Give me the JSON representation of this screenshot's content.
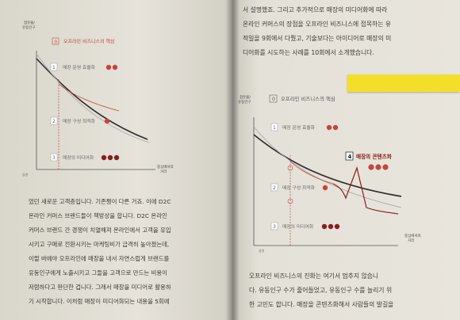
{
  "left_page": {
    "chart": {
      "y_label": [
        "점유율/",
        "유동인구"
      ],
      "x_label": [
        "중심에서의",
        "거리"
      ],
      "header": "오프라인 비즈니스의 핵심",
      "header_num": "0",
      "labels": [
        {
          "num": "1",
          "text": "매장 운영 효율화",
          "marks": [
            "1",
            "2"
          ]
        },
        {
          "num": "2",
          "text": "매장 구성 최적화",
          "marks": [
            "4"
          ]
        },
        {
          "num": "3",
          "text": "매장의 미디어화",
          "marks": [
            "5",
            "9",
            "10"
          ]
        }
      ],
      "axis_small": "상권"
    },
    "body_lines": [
      "었던 새로운 고객층입니다. 기존쩡이 다른 거죠. 이에 D2C",
      "온라인 커머스 브랜드들이 책방상을 합니다. D2C 온라인",
      "커머스 브랜드 간 경쟁이 치열해져 온라인에서 고객을 유입",
      "시키고 구매로 전환시키는 마케팅비가 급격히 높아졌는데,",
      "이럴 바에야 오프라인에 매장을 내서 자연스럽게 브랜드를",
      "유동인구에게 노출시키고 그들을 고객으로 만드는 비용이",
      "저렴하다고 판단한 겁니다. 그래서 매장을 미디어로 활용하",
      "기 시작합니다. 이처럼 매장이 미디어화되는 내용을 5회에"
    ]
  },
  "right_page": {
    "top_lines": [
      "서 설명했죠. 그리고 추가적으로 매장의 미디어화에 따라",
      "온라인 커머스의 장점을 오프라인 비즈니스에 접목하는 유",
      "적일을 9회에서 다뤘고, 기술보다는 아이디어로 매장의 미",
      "디어화를 시도하는 사례를 10회에서 소개했습니다."
    ],
    "chart": {
      "y_label": [
        "점유율/",
        "유동인구"
      ],
      "x_label": [
        "중심에서의",
        "거리"
      ],
      "header": "오프라인 비즈니스의 핵심",
      "header_num": "0",
      "labels": [
        {
          "num": "1",
          "text": "매장 운영 효율화",
          "marks": [
            "1",
            "2"
          ]
        },
        {
          "num": "2",
          "text": "매장 구성 최적화",
          "marks": [
            "4"
          ]
        },
        {
          "num": "3",
          "text": "매장의 미디어화",
          "marks": [
            "5",
            "9",
            "10"
          ]
        },
        {
          "num": "4",
          "text": "매장의 콘텐츠화",
          "marks": [
            "6",
            "7",
            "8"
          ]
        }
      ],
      "axis_small": "상권"
    },
    "bottom_lines": [
      "오프라인 비즈니스의 진화는 여기서 멈추지 않습니",
      "다. 유동인구 수가 줄어들었고, 유동인구 수를 늘리기 위",
      "한 고민도 합니다. 매장을 콘텐츠화해서 사람들의 발길을"
    ]
  },
  "colors": {
    "accent_red": "#c2453f",
    "accent_dark": "#8a1d1f",
    "curve_black": "#2b2b2b",
    "tab_yellow": "#f3df2a"
  }
}
